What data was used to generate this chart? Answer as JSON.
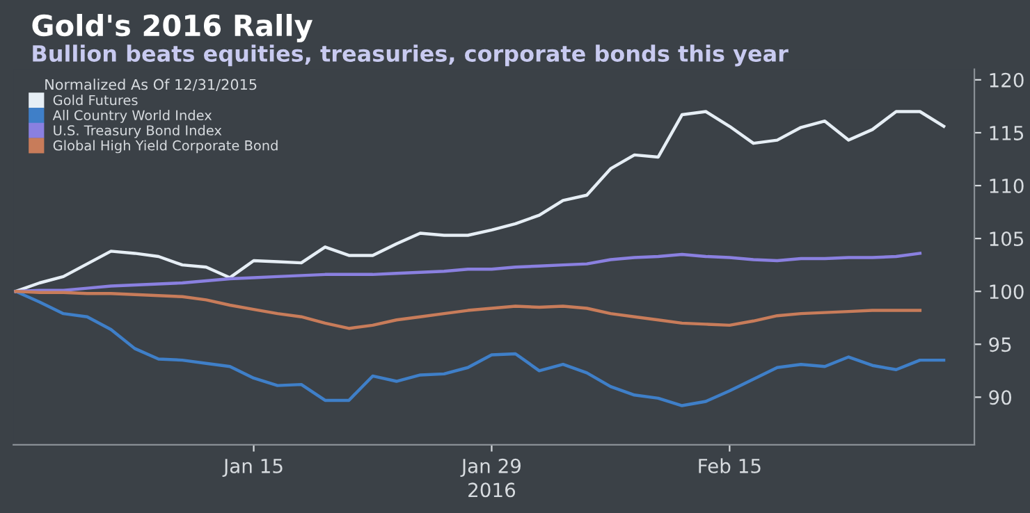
{
  "chart_data": {
    "type": "line",
    "title": "Gold's 2016 Rally",
    "subtitle": "Bullion beats equities, treasuries, corporate bonds this year",
    "xlabel": "2016",
    "legend_title": "Normalized As Of 12/31/2015",
    "categories": [
      null,
      null,
      null,
      null,
      null,
      null,
      null,
      null,
      null,
      null,
      "Jan 15",
      null,
      null,
      null,
      null,
      null,
      null,
      null,
      null,
      null,
      "Jan 29",
      null,
      null,
      null,
      null,
      null,
      null,
      null,
      null,
      null,
      "Feb 15",
      null,
      null,
      null,
      null,
      null,
      null,
      null,
      null,
      null
    ],
    "series": [
      {
        "name": "Gold Futures",
        "color": "#e6eef5",
        "values": [
          100,
          100.8,
          101.4,
          102.6,
          103.8,
          103.6,
          103.3,
          102.5,
          102.3,
          101.3,
          102.9,
          102.8,
          102.7,
          104.2,
          103.4,
          103.4,
          104.5,
          105.5,
          105.3,
          105.3,
          105.8,
          106.4,
          107.2,
          108.6,
          109.1,
          111.6,
          112.9,
          112.7,
          116.7,
          117.0,
          115.6,
          114.0,
          114.3,
          115.5,
          116.1,
          114.3,
          115.3,
          117.0,
          117.0,
          115.6
        ]
      },
      {
        "name": "All Country World Index",
        "color": "#3f7fc8",
        "values": [
          100,
          99.0,
          97.9,
          97.6,
          96.4,
          94.6,
          93.6,
          93.5,
          93.2,
          92.9,
          91.8,
          91.1,
          91.2,
          89.7,
          89.7,
          92.0,
          91.5,
          92.1,
          92.2,
          92.8,
          94.0,
          94.1,
          92.5,
          93.1,
          92.3,
          91.0,
          90.2,
          89.9,
          89.2,
          89.6,
          90.6,
          91.7,
          92.8,
          93.1,
          92.9,
          93.8,
          93.0,
          92.6,
          93.5,
          93.5
        ]
      },
      {
        "name": "U.S. Treasury Bond Index",
        "color": "#8a80e0",
        "values": [
          100,
          100.1,
          100.1,
          100.3,
          100.5,
          100.6,
          100.7,
          100.8,
          101.0,
          101.2,
          101.3,
          101.4,
          101.5,
          101.6,
          101.6,
          101.6,
          101.7,
          101.8,
          101.9,
          102.1,
          102.1,
          102.3,
          102.4,
          102.5,
          102.6,
          103.0,
          103.2,
          103.3,
          103.5,
          103.3,
          103.2,
          103.0,
          102.9,
          103.1,
          103.1,
          103.2,
          103.2,
          103.3,
          103.6,
          null
        ]
      },
      {
        "name": "Global High Yield Corporate Bond",
        "color": "#c87c5a",
        "values": [
          100,
          99.9,
          99.9,
          99.8,
          99.8,
          99.7,
          99.6,
          99.5,
          99.2,
          98.7,
          98.3,
          97.9,
          97.6,
          97.0,
          96.5,
          96.8,
          97.3,
          97.6,
          97.9,
          98.2,
          98.4,
          98.6,
          98.5,
          98.6,
          98.4,
          97.9,
          97.6,
          97.3,
          97.0,
          96.9,
          96.8,
          97.2,
          97.7,
          97.9,
          98.0,
          98.1,
          98.2,
          98.2,
          98.2,
          null
        ]
      }
    ],
    "ylim": [
      85.5,
      121
    ],
    "yticks": [
      90,
      95,
      100,
      105,
      110,
      115,
      120
    ],
    "legend": "top left",
    "marker": "none",
    "line_style": "solid"
  }
}
